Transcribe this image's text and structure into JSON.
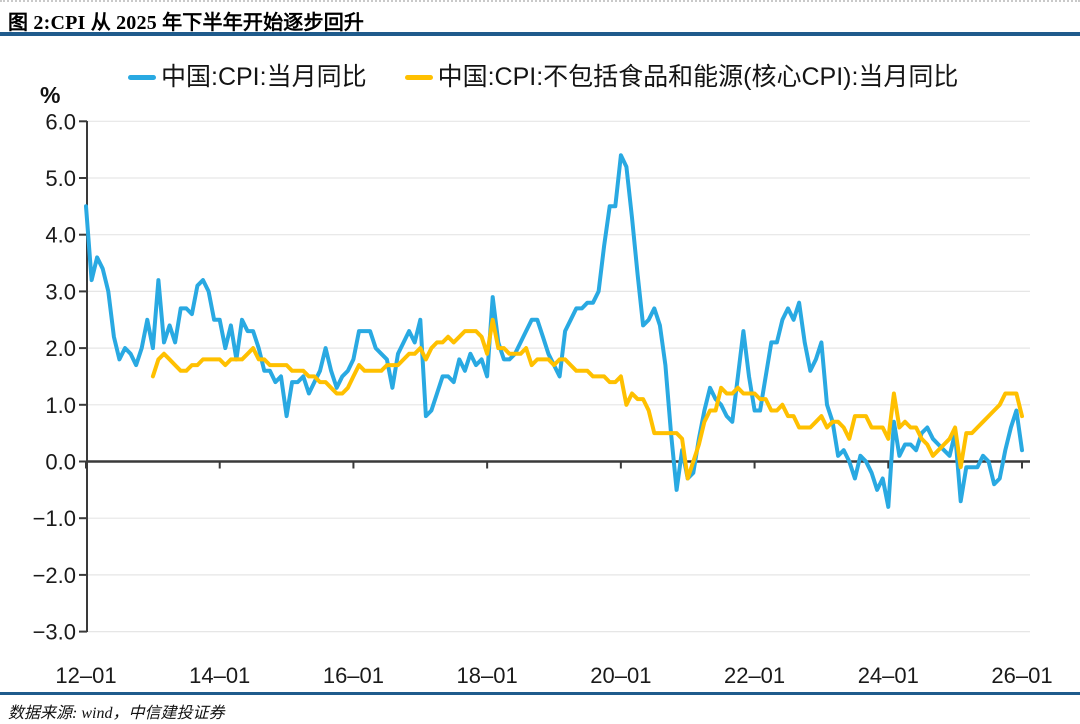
{
  "figure": {
    "title": "图 2:CPI 从 2025 年下半年开始逐步回升",
    "source": "数据来源: wind，中信建投证券"
  },
  "legend": [
    {
      "label": "中国:CPI:当月同比",
      "color": "#29A9E2"
    },
    {
      "label": "中国:CPI:不包括食品和能源(核心CPI):当月同比",
      "color": "#FFC000"
    }
  ],
  "colors": {
    "rule": "#1F5B8C",
    "axis": "#3A3A3A",
    "grid": "#E6E6E6",
    "tick_label": "#1A1A1A",
    "cpi_line": "#29A9E2",
    "core_cpi_line": "#FFC000"
  },
  "chart_data": {
    "type": "line",
    "title": "图 2:CPI 从 2025 年下半年开始逐步回升",
    "unit_label": "%",
    "xlabel": "",
    "ylabel": "%",
    "ylim": [
      -3.0,
      6.0
    ],
    "grid": "horizontal",
    "legend_position": "top",
    "x_frequency": "monthly",
    "x_start": "2012-01",
    "x_end": "2026-01",
    "ytick_values": [
      6,
      5,
      4,
      3,
      2,
      1,
      0,
      -1,
      -2,
      -3
    ],
    "ytick_labels": [
      "6.0",
      "5.0",
      "4.0",
      "3.0",
      "2.0",
      "1.0",
      "0.0",
      "−1.0",
      "−2.0",
      "−3.0"
    ],
    "xtick_months": [
      0,
      24,
      48,
      72,
      96,
      120,
      144,
      168
    ],
    "xtick_labels": [
      "12–01",
      "14–01",
      "16–01",
      "18–01",
      "20–01",
      "22–01",
      "24–01",
      "26–01"
    ],
    "series": [
      {
        "id": "cpi",
        "name": "中国:CPI:当月同比",
        "color": "#29A9E2",
        "start": "2012-01",
        "values": [
          4.5,
          3.2,
          3.6,
          3.4,
          3.0,
          2.2,
          1.8,
          2.0,
          1.9,
          1.7,
          2.0,
          2.5,
          2.0,
          3.2,
          2.1,
          2.4,
          2.1,
          2.7,
          2.7,
          2.6,
          3.1,
          3.2,
          3.0,
          2.5,
          2.5,
          2.0,
          2.4,
          1.8,
          2.5,
          2.3,
          2.3,
          2.0,
          1.6,
          1.6,
          1.4,
          1.5,
          0.8,
          1.4,
          1.4,
          1.5,
          1.2,
          1.4,
          1.6,
          2.0,
          1.6,
          1.3,
          1.5,
          1.6,
          1.8,
          2.3,
          2.3,
          2.3,
          2.0,
          1.9,
          1.8,
          1.3,
          1.9,
          2.1,
          2.3,
          2.1,
          2.5,
          0.8,
          0.9,
          1.2,
          1.5,
          1.5,
          1.4,
          1.8,
          1.6,
          1.9,
          1.7,
          1.8,
          1.5,
          2.9,
          2.1,
          1.8,
          1.8,
          1.9,
          2.1,
          2.3,
          2.5,
          2.5,
          2.2,
          1.9,
          1.7,
          1.5,
          2.3,
          2.5,
          2.7,
          2.7,
          2.8,
          2.8,
          3.0,
          3.8,
          4.5,
          4.5,
          5.4,
          5.2,
          4.3,
          3.3,
          2.4,
          2.5,
          2.7,
          2.4,
          1.7,
          0.5,
          -0.5,
          0.2,
          -0.3,
          -0.2,
          0.4,
          0.9,
          1.3,
          1.1,
          1.0,
          0.8,
          0.7,
          1.5,
          2.3,
          1.5,
          0.9,
          0.9,
          1.5,
          2.1,
          2.1,
          2.5,
          2.7,
          2.5,
          2.8,
          2.1,
          1.6,
          1.8,
          2.1,
          1.0,
          0.7,
          0.1,
          0.2,
          0.0,
          -0.3,
          0.1,
          0.0,
          -0.2,
          -0.5,
          -0.3,
          -0.8,
          0.7,
          0.1,
          0.3,
          0.3,
          0.2,
          0.5,
          0.6,
          0.4,
          0.3,
          0.2,
          0.1,
          0.5,
          -0.7,
          -0.1,
          -0.1,
          -0.1,
          0.1,
          0.0,
          -0.4,
          -0.3,
          0.2,
          0.6,
          0.9,
          0.2
        ]
      },
      {
        "id": "core-cpi",
        "name": "中国:CPI:不包括食品和能源(核心CPI):当月同比",
        "color": "#FFC000",
        "start": "2013-01",
        "values": [
          1.5,
          1.8,
          1.9,
          1.8,
          1.7,
          1.6,
          1.6,
          1.7,
          1.7,
          1.8,
          1.8,
          1.8,
          1.8,
          1.7,
          1.8,
          1.8,
          1.8,
          1.9,
          2.0,
          1.8,
          1.8,
          1.7,
          1.7,
          1.7,
          1.7,
          1.6,
          1.6,
          1.6,
          1.5,
          1.5,
          1.4,
          1.4,
          1.3,
          1.2,
          1.2,
          1.3,
          1.5,
          1.7,
          1.6,
          1.6,
          1.6,
          1.6,
          1.7,
          1.7,
          1.7,
          1.8,
          1.9,
          1.9,
          2.0,
          1.8,
          2.0,
          2.1,
          2.1,
          2.2,
          2.1,
          2.2,
          2.3,
          2.3,
          2.3,
          2.2,
          1.9,
          2.5,
          2.0,
          2.0,
          1.9,
          1.9,
          1.9,
          2.0,
          1.7,
          1.8,
          1.8,
          1.8,
          1.7,
          1.8,
          1.8,
          1.7,
          1.6,
          1.6,
          1.6,
          1.5,
          1.5,
          1.5,
          1.4,
          1.4,
          1.5,
          1.0,
          1.2,
          1.1,
          1.1,
          0.9,
          0.5,
          0.5,
          0.5,
          0.5,
          0.5,
          0.4,
          -0.3,
          0.0,
          0.3,
          0.7,
          0.9,
          0.9,
          1.3,
          1.2,
          1.2,
          1.3,
          1.2,
          1.2,
          1.2,
          1.1,
          1.1,
          0.9,
          0.9,
          1.0,
          0.8,
          0.8,
          0.6,
          0.6,
          0.6,
          0.7,
          0.8,
          0.6,
          0.7,
          0.7,
          0.6,
          0.4,
          0.8,
          0.8,
          0.8,
          0.6,
          0.6,
          0.6,
          0.4,
          1.2,
          0.6,
          0.7,
          0.6,
          0.6,
          0.4,
          0.3,
          0.1,
          0.2,
          0.3,
          0.4,
          0.6,
          -0.1,
          0.5,
          0.5,
          0.6,
          0.7,
          0.8,
          0.9,
          1.0,
          1.2,
          1.2,
          1.2,
          0.8
        ]
      }
    ]
  }
}
